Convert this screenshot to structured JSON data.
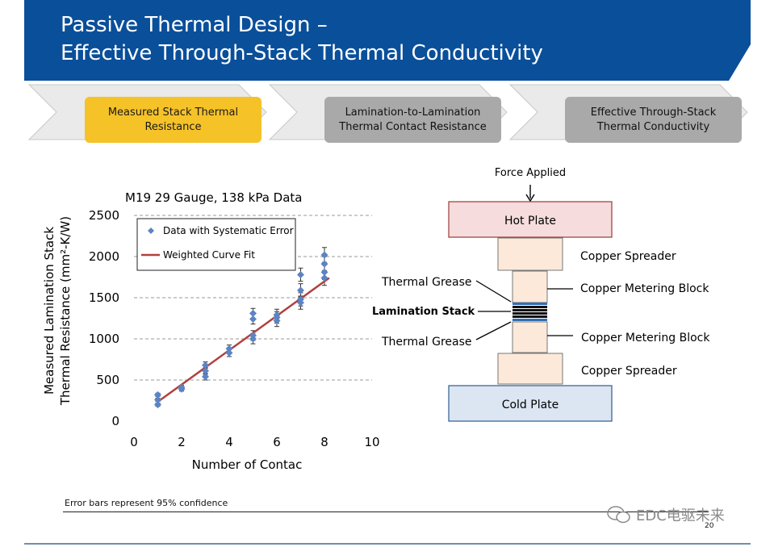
{
  "slide": {
    "title_line1": "Passive Thermal Design –",
    "title_line2": "Effective Through-Stack Thermal Conductivity",
    "banner_color": "#0a4f9a",
    "page_number": "20",
    "footnote": "Error bars represent 95% confidence",
    "watermark": "EDC电驱未来"
  },
  "process_steps": [
    {
      "label": "Measured Stack Thermal\nResistance",
      "state": "active"
    },
    {
      "label": "Lamination-to-Lamination\nThermal Contact Resistance",
      "state": "inactive"
    },
    {
      "label": "Effective Through-Stack\nThermal Conductivity",
      "state": "inactive"
    }
  ],
  "chart_data": {
    "type": "scatter",
    "title": "M19 29 Gauge, 138 kPa Data",
    "xlabel": "Number of Contac",
    "ylabel_line1": "Measured Lamination Stack",
    "ylabel_line2": "Thermal Resistance (mm²-K/W)",
    "xlim": [
      0,
      10
    ],
    "ylim": [
      0,
      2500
    ],
    "x_ticks": [
      0,
      2,
      4,
      6,
      8,
      10
    ],
    "y_ticks": [
      0,
      500,
      1000,
      1500,
      2000,
      2500
    ],
    "grid": "horizontal dashed",
    "legend_position": "top-left",
    "series": [
      {
        "name": "Data with Systematic Error",
        "color": "#5b84c4",
        "marker": "diamond",
        "points": [
          {
            "x": 1,
            "y": 200,
            "err": 20
          },
          {
            "x": 1,
            "y": 260,
            "err": 20
          },
          {
            "x": 1,
            "y": 320,
            "err": 20
          },
          {
            "x": 2,
            "y": 390,
            "err": 25
          },
          {
            "x": 2,
            "y": 410,
            "err": 25
          },
          {
            "x": 3,
            "y": 540,
            "err": 40
          },
          {
            "x": 3,
            "y": 610,
            "err": 40
          },
          {
            "x": 3,
            "y": 680,
            "err": 40
          },
          {
            "x": 4,
            "y": 830,
            "err": 45
          },
          {
            "x": 4,
            "y": 880,
            "err": 45
          },
          {
            "x": 5,
            "y": 1000,
            "err": 60
          },
          {
            "x": 5,
            "y": 1040,
            "err": 60
          },
          {
            "x": 5,
            "y": 1240,
            "err": 60
          },
          {
            "x": 5,
            "y": 1310,
            "err": 60
          },
          {
            "x": 6,
            "y": 1220,
            "err": 70
          },
          {
            "x": 6,
            "y": 1260,
            "err": 70
          },
          {
            "x": 6,
            "y": 1290,
            "err": 70
          },
          {
            "x": 7,
            "y": 1440,
            "err": 80
          },
          {
            "x": 7,
            "y": 1480,
            "err": 80
          },
          {
            "x": 7,
            "y": 1590,
            "err": 80
          },
          {
            "x": 7,
            "y": 1780,
            "err": 80
          },
          {
            "x": 8,
            "y": 1740,
            "err": 90
          },
          {
            "x": 8,
            "y": 1810,
            "err": 90
          },
          {
            "x": 8,
            "y": 1910,
            "err": 90
          },
          {
            "x": 8,
            "y": 2020,
            "err": 90
          }
        ]
      },
      {
        "name": "Weighted Curve Fit",
        "color": "#b0413e",
        "type": "line",
        "x": [
          1,
          8.2
        ],
        "y": [
          235,
          1740
        ]
      }
    ]
  },
  "diagram": {
    "force_label": "Force Applied",
    "hot_plate": "Hot Plate",
    "cold_plate": "Cold Plate",
    "copper_spreader_top": "Copper Spreader",
    "copper_spreader_bottom": "Copper Spreader",
    "metering_block_top": "Copper Metering Block",
    "metering_block_bottom": "Copper Metering Block",
    "thermal_grease_top": "Thermal Grease",
    "thermal_grease_bottom": "Thermal Grease",
    "lamination_stack": "Lamination Stack",
    "hot_color": "#f6dcdc",
    "cold_color": "#dbe6f2",
    "copper_color": "#fde9d9"
  }
}
